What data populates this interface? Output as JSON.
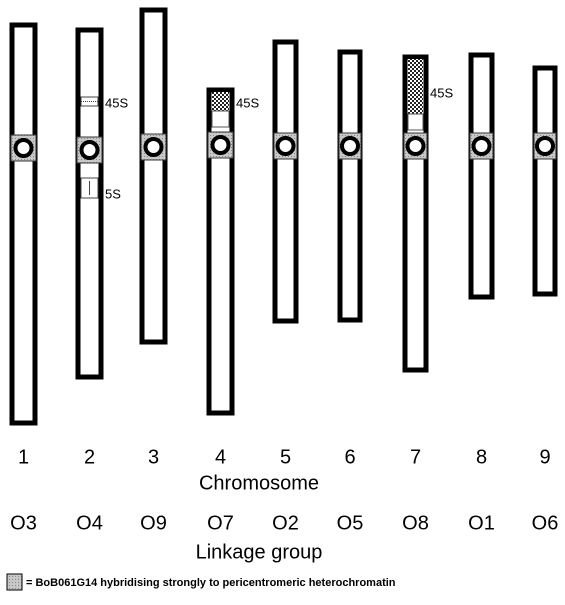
{
  "chromosomes": [
    {
      "number": "1",
      "linkage_group": "O3",
      "sites": []
    },
    {
      "number": "2",
      "linkage_group": "O4",
      "sites": [
        {
          "label": "45S"
        },
        {
          "label": "5S"
        }
      ]
    },
    {
      "number": "3",
      "linkage_group": "O9",
      "sites": []
    },
    {
      "number": "4",
      "linkage_group": "O7",
      "sites": [
        {
          "label": "45S"
        }
      ]
    },
    {
      "number": "5",
      "linkage_group": "O2",
      "sites": []
    },
    {
      "number": "6",
      "linkage_group": "O5",
      "sites": []
    },
    {
      "number": "7",
      "linkage_group": "O8",
      "sites": [
        {
          "label": "45S"
        }
      ]
    },
    {
      "number": "8",
      "linkage_group": "O1",
      "sites": []
    },
    {
      "number": "9",
      "linkage_group": "O6",
      "sites": []
    }
  ],
  "axis_labels": {
    "chromosome": "Chromosome",
    "linkage_group": "Linkage group"
  },
  "legend": {
    "text": "= BoB061G14  hybridising strongly to pericentromeric heterochromatin"
  }
}
